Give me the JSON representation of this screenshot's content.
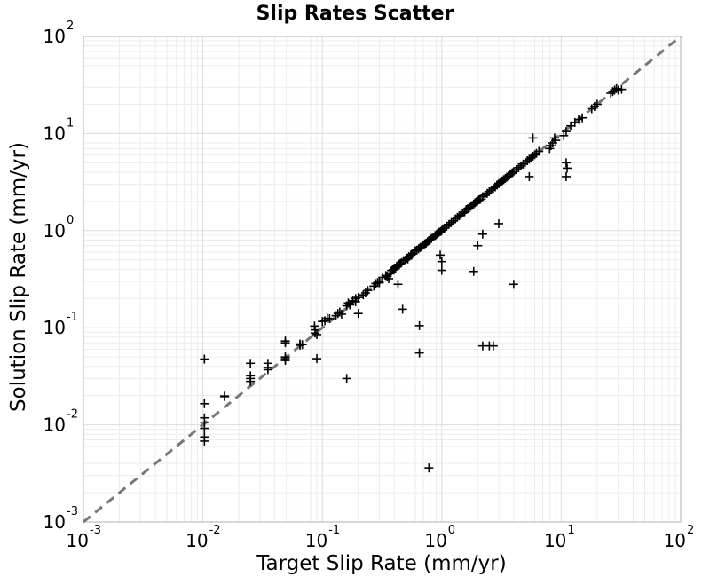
{
  "chart_data": {
    "type": "scatter",
    "title": "Slip Rates Scatter",
    "xlabel": "Target Slip Rate (mm/yr)",
    "ylabel": "Solution Slip Rate (mm/yr)",
    "xscale": "log",
    "yscale": "log",
    "xlim": [
      0.001,
      100
    ],
    "ylim": [
      0.001,
      100
    ],
    "tick_labels": [
      {
        "base": "10",
        "exp": "-3",
        "value": 0.001
      },
      {
        "base": "10",
        "exp": "-2",
        "value": 0.01
      },
      {
        "base": "10",
        "exp": "-1",
        "value": 0.1
      },
      {
        "base": "10",
        "exp": "0",
        "value": 1
      },
      {
        "base": "10",
        "exp": "1",
        "value": 10
      },
      {
        "base": "10",
        "exp": "2",
        "value": 100
      }
    ],
    "grid": true,
    "marker": "plus",
    "marker_color": "#000000",
    "reference_line": {
      "style": "dashed",
      "color": "#777777",
      "from": [
        0.001,
        0.001
      ],
      "to": [
        100,
        100
      ]
    },
    "points": [
      [
        0.0103,
        0.0475
      ],
      [
        0.0103,
        0.0165
      ],
      [
        0.0103,
        0.0118
      ],
      [
        0.0103,
        0.0105
      ],
      [
        0.0103,
        0.0092
      ],
      [
        0.0103,
        0.0075
      ],
      [
        0.0103,
        0.0068
      ],
      [
        0.0152,
        0.0195
      ],
      [
        0.0152,
        0.0198
      ],
      [
        0.025,
        0.043
      ],
      [
        0.025,
        0.032
      ],
      [
        0.025,
        0.03
      ],
      [
        0.025,
        0.028
      ],
      [
        0.035,
        0.043
      ],
      [
        0.035,
        0.039
      ],
      [
        0.035,
        0.037
      ],
      [
        0.049,
        0.073
      ],
      [
        0.049,
        0.07
      ],
      [
        0.049,
        0.05
      ],
      [
        0.049,
        0.048
      ],
      [
        0.049,
        0.046
      ],
      [
        0.065,
        0.068
      ],
      [
        0.065,
        0.066
      ],
      [
        0.068,
        0.067
      ],
      [
        0.087,
        0.095
      ],
      [
        0.087,
        0.088
      ],
      [
        0.09,
        0.085
      ],
      [
        0.09,
        0.048
      ],
      [
        0.086,
        0.104
      ],
      [
        0.1,
        0.116
      ],
      [
        0.105,
        0.118
      ],
      [
        0.11,
        0.125
      ],
      [
        0.115,
        0.124
      ],
      [
        0.13,
        0.133
      ],
      [
        0.135,
        0.14
      ],
      [
        0.14,
        0.145
      ],
      [
        0.145,
        0.138
      ],
      [
        0.16,
        0.168
      ],
      [
        0.165,
        0.18
      ],
      [
        0.17,
        0.172
      ],
      [
        0.16,
        0.03
      ],
      [
        0.18,
        0.19
      ],
      [
        0.19,
        0.185
      ],
      [
        0.2,
        0.205
      ],
      [
        0.19,
        0.2
      ],
      [
        0.2,
        0.14
      ],
      [
        0.22,
        0.218
      ],
      [
        0.23,
        0.228
      ],
      [
        0.24,
        0.242
      ],
      [
        0.27,
        0.268
      ],
      [
        0.28,
        0.285
      ],
      [
        0.29,
        0.292
      ],
      [
        0.3,
        0.3
      ],
      [
        0.3,
        0.29
      ],
      [
        0.32,
        0.33
      ],
      [
        0.34,
        0.345
      ],
      [
        0.35,
        0.34
      ],
      [
        0.36,
        0.32
      ],
      [
        0.37,
        0.36
      ],
      [
        0.38,
        0.388
      ],
      [
        0.39,
        0.395
      ],
      [
        0.4,
        0.41
      ],
      [
        0.41,
        0.405
      ],
      [
        0.42,
        0.43
      ],
      [
        0.43,
        0.44
      ],
      [
        0.44,
        0.45
      ],
      [
        0.45,
        0.46
      ],
      [
        0.46,
        0.465
      ],
      [
        0.48,
        0.49
      ],
      [
        0.5,
        0.5
      ],
      [
        0.51,
        0.52
      ],
      [
        0.52,
        0.51
      ],
      [
        0.53,
        0.54
      ],
      [
        0.55,
        0.56
      ],
      [
        0.56,
        0.57
      ],
      [
        0.57,
        0.58
      ],
      [
        0.47,
        0.155
      ],
      [
        0.43,
        0.28
      ],
      [
        0.6,
        0.62
      ],
      [
        0.62,
        0.63
      ],
      [
        0.64,
        0.65
      ],
      [
        0.66,
        0.67
      ],
      [
        0.68,
        0.68
      ],
      [
        0.65,
        0.105
      ],
      [
        0.65,
        0.055
      ],
      [
        0.7,
        0.71
      ],
      [
        0.72,
        0.73
      ],
      [
        0.74,
        0.745
      ],
      [
        0.76,
        0.77
      ],
      [
        0.78,
        0.79
      ],
      [
        0.8,
        0.81
      ],
      [
        0.78,
        0.0036
      ],
      [
        0.82,
        0.83
      ],
      [
        0.85,
        0.86
      ],
      [
        0.88,
        0.89
      ],
      [
        0.9,
        0.91
      ],
      [
        0.92,
        0.93
      ],
      [
        0.95,
        0.96
      ],
      [
        0.98,
        0.98
      ],
      [
        1.0,
        1.0
      ],
      [
        1.02,
        1.04
      ],
      [
        1.05,
        1.06
      ],
      [
        1.0,
        0.48
      ],
      [
        1.0,
        0.39
      ],
      [
        0.97,
        0.56
      ],
      [
        1.1,
        1.11
      ],
      [
        1.15,
        1.16
      ],
      [
        1.2,
        1.21
      ],
      [
        1.25,
        1.26
      ],
      [
        1.3,
        1.32
      ],
      [
        1.35,
        1.37
      ],
      [
        1.4,
        1.42
      ],
      [
        1.45,
        1.46
      ],
      [
        1.5,
        1.52
      ],
      [
        1.55,
        1.56
      ],
      [
        1.6,
        1.65
      ],
      [
        1.65,
        1.68
      ],
      [
        1.7,
        1.72
      ],
      [
        1.75,
        1.78
      ],
      [
        1.8,
        1.82
      ],
      [
        1.85,
        1.88
      ],
      [
        1.9,
        1.94
      ],
      [
        1.95,
        1.98
      ],
      [
        2.0,
        2.02
      ],
      [
        2.05,
        2.08
      ],
      [
        1.85,
        0.38
      ],
      [
        2.2,
        0.065
      ],
      [
        2.5,
        0.065
      ],
      [
        2.7,
        0.065
      ],
      [
        2.1,
        2.1
      ],
      [
        2.2,
        2.24
      ],
      [
        2.3,
        2.32
      ],
      [
        2.4,
        2.42
      ],
      [
        2.5,
        2.52
      ],
      [
        2.6,
        2.62
      ],
      [
        2.7,
        2.72
      ],
      [
        2.8,
        2.82
      ],
      [
        2.9,
        2.95
      ],
      [
        3.0,
        3.05
      ],
      [
        2.0,
        0.7
      ],
      [
        2.2,
        0.92
      ],
      [
        3.0,
        1.18
      ],
      [
        3.1,
        3.15
      ],
      [
        3.2,
        3.25
      ],
      [
        3.3,
        3.35
      ],
      [
        3.4,
        3.45
      ],
      [
        3.5,
        3.55
      ],
      [
        3.6,
        3.65
      ],
      [
        3.7,
        3.75
      ],
      [
        3.8,
        3.85
      ],
      [
        3.9,
        3.95
      ],
      [
        4.0,
        4.05
      ],
      [
        4.0,
        0.28
      ],
      [
        4.2,
        4.25
      ],
      [
        4.4,
        4.45
      ],
      [
        4.6,
        4.65
      ],
      [
        4.8,
        4.85
      ],
      [
        5.0,
        5.05
      ],
      [
        5.2,
        5.25
      ],
      [
        5.4,
        5.45
      ],
      [
        5.6,
        5.65
      ],
      [
        5.8,
        5.85
      ],
      [
        5.4,
        3.6
      ],
      [
        5.8,
        9.0
      ],
      [
        6.0,
        6.05
      ],
      [
        6.2,
        6.25
      ],
      [
        6.5,
        6.55
      ],
      [
        8.0,
        7.0
      ],
      [
        8.2,
        7.5
      ],
      [
        8.5,
        8.0
      ],
      [
        8.8,
        9.0
      ],
      [
        9.0,
        8.5
      ],
      [
        11.0,
        5.0
      ],
      [
        11.2,
        4.4
      ],
      [
        11.0,
        3.6
      ],
      [
        10.5,
        9.5
      ],
      [
        11.0,
        10.5
      ],
      [
        12.0,
        12.0
      ],
      [
        13.0,
        13.0
      ],
      [
        14.0,
        14.0
      ],
      [
        15.0,
        14.5
      ],
      [
        18.0,
        18.0
      ],
      [
        19.0,
        19.0
      ],
      [
        20.0,
        20.0
      ],
      [
        26.0,
        26.0
      ],
      [
        27.0,
        27.0
      ],
      [
        28.0,
        28.0
      ],
      [
        29.0,
        29.0
      ],
      [
        30.0,
        28.0
      ],
      [
        32.0,
        28.5
      ]
    ]
  }
}
